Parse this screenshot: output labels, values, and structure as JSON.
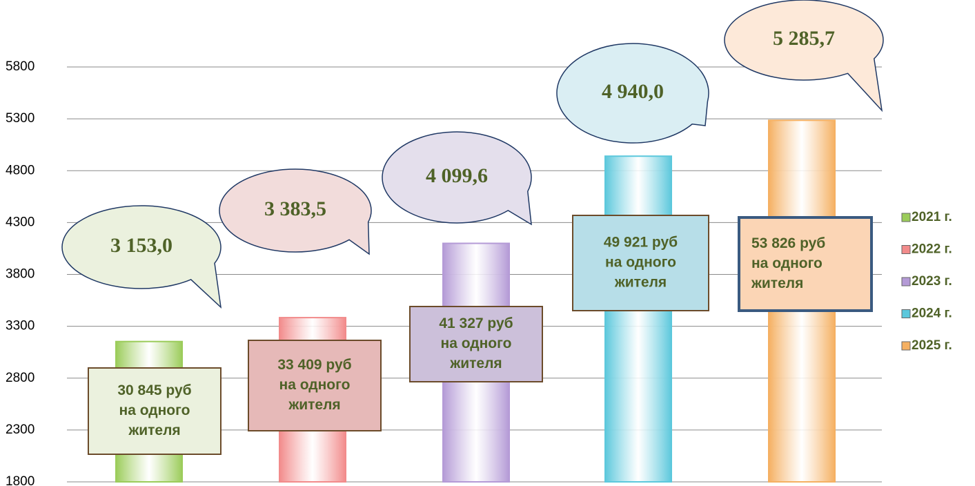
{
  "chart_data": {
    "type": "bar",
    "series": [
      {
        "name": "2021 г.",
        "color": "#9bcc5a",
        "values": [
          3153.0
        ],
        "value_labels": [
          "3 153,0"
        ],
        "note": [
          "30 845 руб",
          "на одного",
          "жителя"
        ]
      },
      {
        "name": "2022 г.",
        "color": "#f28b8b",
        "values": [
          3383.5
        ],
        "value_labels": [
          "3 383,5"
        ],
        "note": [
          "33 409 руб",
          "на одного",
          "жителя"
        ]
      },
      {
        "name": "2023 г.",
        "color": "#b49ad6",
        "values": [
          4099.6
        ],
        "value_labels": [
          "4 099,6"
        ],
        "note": [
          "41 327 руб",
          "на одного",
          "жителя"
        ]
      },
      {
        "name": "2024 г.",
        "color": "#5cc8dc",
        "values": [
          4940.0
        ],
        "value_labels": [
          "4 940,0"
        ],
        "note": [
          "49 921 руб",
          "на одного",
          "жителя"
        ]
      },
      {
        "name": "2025 г.",
        "color": "#f5b062",
        "values": [
          5285.7
        ],
        "value_labels": [
          "5 285,7"
        ],
        "note": [
          "53 826 руб",
          "на одного",
          "жителя"
        ]
      }
    ],
    "ylim": [
      1800,
      5800
    ],
    "yticks": [
      1800,
      2300,
      2800,
      3300,
      3800,
      4300,
      4800,
      5300,
      5800
    ],
    "grid": true,
    "legend": "right"
  }
}
